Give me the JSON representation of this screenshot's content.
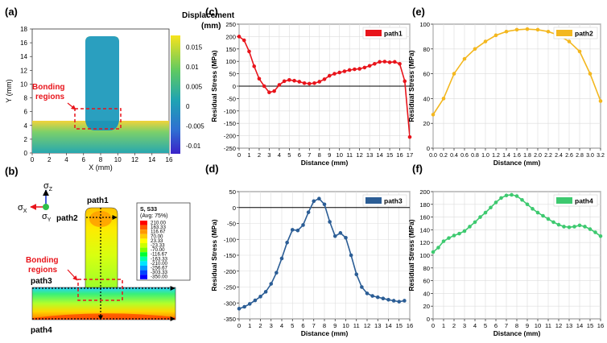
{
  "colors": {
    "path1": "#e8141b",
    "path2": "#f3b71f",
    "path3": "#2b5d95",
    "path4": "#3dc96f",
    "bonding": "#e8141b"
  },
  "panel_a": {
    "letter": "(a)",
    "xlabel": "X (mm)",
    "ylabel": "Y (mm)",
    "xticks": [
      "0",
      "2",
      "4",
      "6",
      "8",
      "10",
      "12",
      "14",
      "16"
    ],
    "yticks": [
      "0",
      "2",
      "4",
      "6",
      "8",
      "10",
      "12",
      "14",
      "16",
      "18"
    ],
    "colorbar_title": [
      "Displacement",
      "(mm)"
    ],
    "colorbar_ticks": [
      "0.015",
      "0.01",
      "0.005",
      "0",
      "-0.005",
      "-0.01"
    ],
    "bonding_label": [
      "Bonding",
      "regions"
    ]
  },
  "panel_b": {
    "letter": "(b)",
    "legend_title": [
      "S, S33",
      "(Avg: 75%)"
    ],
    "legend_values": [
      "210.00",
      "163.33",
      "116.67",
      "70.00",
      "23.33",
      "-23.33",
      "-70.00",
      "-116.67",
      "-163.33",
      "-210.00",
      "-256.67",
      "-303.33",
      "-350.00"
    ],
    "legend_colors": [
      "#ff0000",
      "#ff5a00",
      "#ff9900",
      "#ffcc00",
      "#ffff00",
      "#ccff00",
      "#7fff00",
      "#00ff33",
      "#00ffaa",
      "#00e5ff",
      "#0099ff",
      "#0044ff",
      "#0000ff"
    ],
    "paths": [
      "path1",
      "path2",
      "path3",
      "path4"
    ],
    "axes": {
      "z": "σ",
      "z_sub": "Z",
      "x": "σ",
      "x_sub": "X",
      "y": "σ",
      "y_sub": "Y"
    },
    "bonding_label": [
      "Bonding",
      "regions"
    ]
  },
  "chart_data": [
    {
      "id": "c",
      "letter": "(c)",
      "type": "line",
      "series_name": "path1",
      "xlabel": "Distance (mm)",
      "ylabel": "Residual Stress (MPa)",
      "xlim": [
        0,
        17
      ],
      "ylim": [
        -250,
        250
      ],
      "xticks": [
        0,
        1,
        2,
        3,
        4,
        5,
        6,
        7,
        8,
        9,
        10,
        11,
        12,
        13,
        14,
        15,
        16,
        17
      ],
      "yticks": [
        -250,
        -200,
        -150,
        -100,
        -50,
        0,
        50,
        100,
        150,
        200,
        250
      ],
      "x": [
        0,
        0.5,
        1,
        1.5,
        2,
        2.5,
        3,
        3.5,
        4,
        4.5,
        5,
        5.5,
        6,
        6.5,
        7,
        7.5,
        8,
        8.5,
        9,
        9.5,
        10,
        10.5,
        11,
        11.5,
        12,
        12.5,
        13,
        13.5,
        14,
        14.5,
        15,
        15.5,
        16,
        16.5,
        17
      ],
      "y": [
        200,
        185,
        140,
        80,
        30,
        0,
        -25,
        -20,
        5,
        20,
        25,
        22,
        18,
        12,
        10,
        12,
        18,
        28,
        42,
        50,
        55,
        60,
        65,
        68,
        70,
        75,
        82,
        90,
        98,
        99,
        96,
        98,
        90,
        20,
        -205
      ]
    },
    {
      "id": "d",
      "letter": "(d)",
      "type": "line",
      "series_name": "path3",
      "xlabel": "Distance (mm)",
      "ylabel": "Residual Stress (MPa)",
      "xlim": [
        0,
        16
      ],
      "ylim": [
        -350,
        50
      ],
      "xticks": [
        0,
        1,
        2,
        3,
        4,
        5,
        6,
        7,
        8,
        9,
        10,
        11,
        12,
        13,
        14,
        15,
        16
      ],
      "yticks": [
        -350,
        -300,
        -250,
        -200,
        -150,
        -100,
        -50,
        0,
        50
      ],
      "x": [
        0,
        0.5,
        1,
        1.5,
        2,
        2.5,
        3,
        3.5,
        4,
        4.5,
        5,
        5.5,
        6,
        6.5,
        7,
        7.5,
        8,
        8.5,
        9,
        9.5,
        10,
        10.5,
        11,
        11.5,
        12,
        12.5,
        13,
        13.5,
        14,
        14.5,
        15,
        15.5
      ],
      "y": [
        -318,
        -312,
        -303,
        -292,
        -280,
        -265,
        -240,
        -205,
        -160,
        -110,
        -70,
        -72,
        -55,
        -15,
        20,
        28,
        10,
        -45,
        -90,
        -80,
        -95,
        -150,
        -210,
        -250,
        -270,
        -278,
        -282,
        -286,
        -290,
        -293,
        -296,
        -293
      ]
    },
    {
      "id": "e",
      "letter": "(e)",
      "type": "line",
      "series_name": "path2",
      "xlabel": "Distance (mm)",
      "ylabel": "Residual Stress (MPa)",
      "xlim": [
        0,
        3.2
      ],
      "ylim": [
        0,
        100
      ],
      "xticks": [
        0,
        0.2,
        0.4,
        0.6,
        0.8,
        1.0,
        1.2,
        1.4,
        1.6,
        1.8,
        2.0,
        2.2,
        2.4,
        2.6,
        2.8,
        3.0,
        3.2
      ],
      "xtick_labels": [
        "0.0",
        "0.2",
        "0.4",
        "0.6",
        "0.8",
        "1.0",
        "1.2",
        "1.4",
        "1.6",
        "1.8",
        "2.0",
        "2.2",
        "2.4",
        "2.6",
        "2.8",
        "3.0",
        "3.2"
      ],
      "yticks": [
        0,
        20,
        40,
        60,
        80,
        100
      ],
      "x": [
        0,
        0.2,
        0.4,
        0.6,
        0.8,
        1.0,
        1.2,
        1.4,
        1.6,
        1.8,
        2.0,
        2.2,
        2.4,
        2.6,
        2.8,
        3.0,
        3.2
      ],
      "y": [
        27,
        40,
        60,
        72,
        80,
        86,
        91,
        94,
        95.5,
        96,
        95.5,
        94,
        91,
        86,
        78,
        60,
        38
      ]
    },
    {
      "id": "f",
      "letter": "(f)",
      "type": "line",
      "series_name": "path4",
      "xlabel": "Distance (mm)",
      "ylabel": "Residual Stress (MPa)",
      "xlim": [
        0,
        16
      ],
      "ylim": [
        0,
        200
      ],
      "xticks": [
        0,
        1,
        2,
        3,
        4,
        5,
        6,
        7,
        8,
        9,
        10,
        11,
        12,
        13,
        14,
        15,
        16
      ],
      "yticks": [
        0,
        20,
        40,
        60,
        80,
        100,
        120,
        140,
        160,
        180,
        200
      ],
      "x": [
        0,
        0.5,
        1,
        1.5,
        2,
        2.5,
        3,
        3.5,
        4,
        4.5,
        5,
        5.5,
        6,
        6.5,
        7,
        7.5,
        8,
        8.5,
        9,
        9.5,
        10,
        10.5,
        11,
        11.5,
        12,
        12.5,
        13,
        13.5,
        14,
        14.5,
        15,
        15.5,
        16
      ],
      "y": [
        105,
        112,
        122,
        127,
        131,
        134,
        138,
        145,
        152,
        160,
        167,
        175,
        183,
        190,
        194,
        195,
        193,
        187,
        180,
        173,
        167,
        162,
        157,
        152,
        148,
        145,
        144,
        145,
        147,
        145,
        141,
        136,
        130
      ]
    }
  ]
}
